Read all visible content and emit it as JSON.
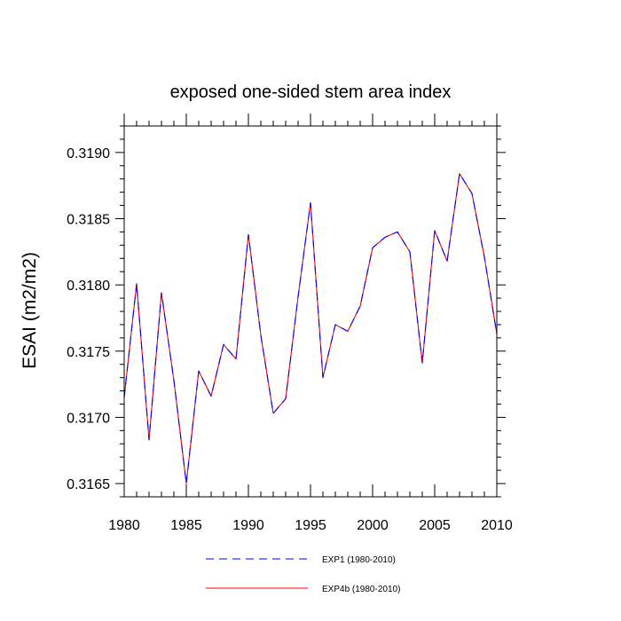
{
  "chart_data": {
    "type": "line",
    "title": "exposed one-sided stem area index",
    "xlabel": "",
    "ylabel": "ESAI  (m2/m2)",
    "xlim": [
      1980,
      2010
    ],
    "ylim": [
      0.3164,
      0.3192
    ],
    "xticks": [
      1980,
      1985,
      1990,
      1995,
      2000,
      2005,
      2010
    ],
    "xtick_labels": [
      "1980",
      "1985",
      "1990",
      "1995",
      "2000",
      "2005",
      "2010"
    ],
    "yticks": [
      0.3165,
      0.317,
      0.3175,
      0.318,
      0.3185,
      0.319
    ],
    "ytick_labels": [
      "0.3165",
      "0.3170",
      "0.3175",
      "0.3180",
      "0.3185",
      "0.3190"
    ],
    "grid": false,
    "legend_position": "bottom",
    "x": [
      1980,
      1981,
      1982,
      1983,
      1984,
      1985,
      1986,
      1987,
      1988,
      1989,
      1990,
      1991,
      1992,
      1993,
      1994,
      1995,
      1996,
      1997,
      1998,
      1999,
      2000,
      2001,
      2002,
      2003,
      2004,
      2005,
      2006,
      2007,
      2008,
      2009,
      2010
    ],
    "series": [
      {
        "name": "EXP1 (1980-2010)",
        "color": "#0000ff",
        "style": "dashed",
        "values": [
          0.31715,
          0.31801,
          0.31683,
          0.31794,
          0.31728,
          0.3165,
          0.31735,
          0.31716,
          0.31755,
          0.31744,
          0.31838,
          0.31762,
          0.31703,
          0.31714,
          0.31791,
          0.31862,
          0.3173,
          0.3177,
          0.31765,
          0.31784,
          0.31828,
          0.31836,
          0.3184,
          0.31825,
          0.31741,
          0.31841,
          0.31818,
          0.31884,
          0.31869,
          0.31821,
          0.31763
        ]
      },
      {
        "name": "EXP4b (1980-2010)",
        "color": "#ff0000",
        "style": "solid",
        "values": [
          0.31715,
          0.31801,
          0.31683,
          0.31794,
          0.31728,
          0.3165,
          0.31735,
          0.31716,
          0.31755,
          0.31744,
          0.31838,
          0.31762,
          0.31703,
          0.31714,
          0.31791,
          0.31862,
          0.3173,
          0.3177,
          0.31765,
          0.31784,
          0.31828,
          0.31836,
          0.3184,
          0.31825,
          0.31741,
          0.31841,
          0.31818,
          0.31884,
          0.31869,
          0.31821,
          0.31763
        ]
      }
    ]
  }
}
